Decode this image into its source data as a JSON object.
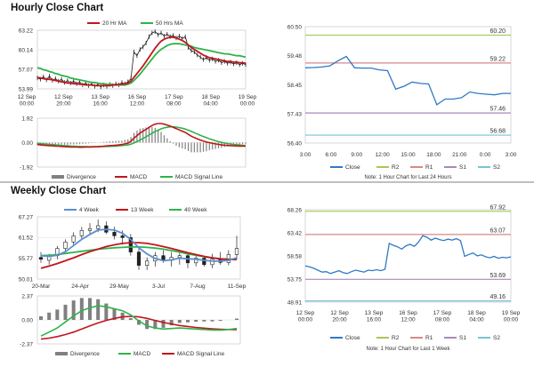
{
  "titles": {
    "hourly": "Hourly Close Chart",
    "weekly": "Weekly Close Chart"
  },
  "colors": {
    "price": "#1f1f1f",
    "ma_short": "#c0161c",
    "ma_long": "#2eb34a",
    "macd_red": "#c0161c",
    "signal_green": "#2eb34a",
    "close_blue": "#2f7ac6",
    "r2": "#a6c85a",
    "r1": "#d9878a",
    "s1": "#a78ab8",
    "s2": "#79c3d6",
    "divergence": "#808080",
    "four_week": "#5a8fd0"
  },
  "chart_data": [
    {
      "id": "hourly_price",
      "type": "line",
      "legend": [
        "20 Hr MA",
        "50 Hrs MA"
      ],
      "x_ticks": [
        "12 Sep\n00:00",
        "12 Sep\n20:00",
        "13 Sep\n16:00",
        "16 Sep\n12:00",
        "17 Sep\n08:00",
        "18 Sep\n04:00",
        "19 Sep\n00:00"
      ],
      "y_ticks": [
        "63.22",
        "60.14",
        "57.07",
        "53.99"
      ],
      "ylim": [
        53.99,
        63.22
      ],
      "price": [
        55.7,
        55.5,
        55.9,
        55.4,
        56.0,
        55.3,
        55.6,
        55.2,
        55.5,
        55.0,
        55.3,
        54.9,
        55.2,
        54.8,
        55.1,
        54.6,
        54.9,
        54.5,
        54.8,
        54.4,
        54.7,
        54.3,
        54.6,
        54.4,
        54.7,
        54.5,
        54.8,
        54.6,
        55.0,
        54.8,
        55.1,
        55.6,
        59.8,
        59.2,
        60.2,
        60.6,
        61.2,
        62.2,
        62.8,
        63.0,
        62.5,
        62.8,
        62.3,
        62.6,
        62.2,
        62.4,
        62.0,
        62.3,
        61.9,
        62.2,
        60.5,
        60.0,
        59.8,
        59.3,
        59.0,
        58.6,
        58.9,
        58.5,
        58.7,
        58.3,
        58.5,
        58.1,
        58.3,
        58.0,
        58.2,
        57.9,
        58.1,
        57.8,
        58.0,
        57.8
      ],
      "ma20": [
        55.8,
        55.7,
        55.6,
        55.5,
        55.5,
        55.4,
        55.3,
        55.2,
        55.1,
        55.0,
        54.9,
        54.9,
        54.8,
        54.8,
        54.7,
        54.7,
        54.6,
        54.6,
        54.6,
        54.5,
        54.5,
        54.5,
        54.5,
        54.5,
        54.5,
        54.6,
        54.6,
        54.7,
        54.7,
        54.8,
        54.9,
        55.2,
        55.8,
        56.4,
        57.0,
        57.6,
        58.3,
        59.0,
        59.7,
        60.4,
        61.0,
        61.5,
        61.8,
        62.0,
        62.1,
        62.1,
        62.0,
        61.8,
        61.6,
        61.3,
        60.9,
        60.5,
        60.2,
        59.9,
        59.6,
        59.3,
        59.1,
        58.9,
        58.8,
        58.7,
        58.6,
        58.5,
        58.4,
        58.3,
        58.3,
        58.2,
        58.2,
        58.1,
        58.1,
        58.0
      ],
      "ma50": [
        57.3,
        57.2,
        57.0,
        56.9,
        56.7,
        56.6,
        56.4,
        56.3,
        56.1,
        56.0,
        55.9,
        55.7,
        55.6,
        55.5,
        55.4,
        55.3,
        55.2,
        55.1,
        55.0,
        55.0,
        54.9,
        54.8,
        54.8,
        54.7,
        54.7,
        54.7,
        54.6,
        54.6,
        54.6,
        54.6,
        54.7,
        54.9,
        55.3,
        55.8,
        56.3,
        56.9,
        57.5,
        58.1,
        58.7,
        59.3,
        59.8,
        60.2,
        60.5,
        60.8,
        61.0,
        61.1,
        61.1,
        61.1,
        61.0,
        60.9,
        60.8,
        60.7,
        60.5,
        60.4,
        60.3,
        60.2,
        60.1,
        60.0,
        59.9,
        59.8,
        59.7,
        59.6,
        59.5,
        59.5,
        59.4,
        59.3,
        59.2,
        59.2,
        59.1,
        59.0
      ]
    },
    {
      "id": "hourly_macd",
      "type": "bar",
      "legend": [
        "Divergence",
        "MACD",
        "MACD Signal Line"
      ],
      "y_ticks": [
        "1.92",
        "0.00",
        "-1.92"
      ],
      "ylim": [
        -1.92,
        1.92
      ],
      "macd": [
        -0.15,
        -0.18,
        -0.2,
        -0.22,
        -0.24,
        -0.25,
        -0.27,
        -0.28,
        -0.3,
        -0.32,
        -0.33,
        -0.34,
        -0.35,
        -0.35,
        -0.36,
        -0.36,
        -0.35,
        -0.35,
        -0.34,
        -0.33,
        -0.32,
        -0.3,
        -0.28,
        -0.26,
        -0.24,
        -0.22,
        -0.2,
        -0.18,
        -0.15,
        -0.1,
        -0.05,
        0.1,
        0.35,
        0.55,
        0.75,
        0.9,
        1.05,
        1.2,
        1.35,
        1.45,
        1.5,
        1.5,
        1.45,
        1.38,
        1.3,
        1.2,
        1.1,
        1.0,
        0.9,
        0.8,
        0.65,
        0.5,
        0.4,
        0.3,
        0.2,
        0.12,
        0.05,
        0.0,
        -0.05,
        -0.1,
        -0.14,
        -0.18,
        -0.2,
        -0.22,
        -0.24,
        -0.25,
        -0.26,
        -0.27,
        -0.27,
        -0.28
      ],
      "signal": [
        -0.05,
        -0.08,
        -0.1,
        -0.12,
        -0.14,
        -0.16,
        -0.18,
        -0.2,
        -0.22,
        -0.24,
        -0.25,
        -0.27,
        -0.28,
        -0.29,
        -0.3,
        -0.31,
        -0.31,
        -0.32,
        -0.32,
        -0.32,
        -0.32,
        -0.31,
        -0.31,
        -0.3,
        -0.29,
        -0.28,
        -0.27,
        -0.25,
        -0.23,
        -0.21,
        -0.18,
        -0.12,
        -0.03,
        0.08,
        0.2,
        0.33,
        0.46,
        0.6,
        0.74,
        0.87,
        0.98,
        1.08,
        1.16,
        1.21,
        1.24,
        1.24,
        1.22,
        1.18,
        1.13,
        1.06,
        0.98,
        0.88,
        0.78,
        0.68,
        0.58,
        0.48,
        0.39,
        0.3,
        0.22,
        0.15,
        0.08,
        0.02,
        -0.03,
        -0.07,
        -0.11,
        -0.14,
        -0.17,
        -0.19,
        -0.21,
        -0.23
      ]
    },
    {
      "id": "hourly_close",
      "type": "line",
      "legend": [
        "Close",
        "R2",
        "R1",
        "S1",
        "S2"
      ],
      "note": "Note: 1 Hour Chart for Last 24 Hours",
      "x_ticks": [
        "3:00",
        "6:00",
        "9:00",
        "12:00",
        "15:00",
        "18:00",
        "21:00",
        "0:00",
        "3:00"
      ],
      "y_ticks": [
        "60.50",
        "59.48",
        "58.45",
        "57.43",
        "56.40"
      ],
      "ylim": [
        56.4,
        60.5
      ],
      "levels": {
        "R2": 60.2,
        "R1": 59.22,
        "S1": 57.46,
        "S2": 56.68
      },
      "level_labels": {
        "R2": "60.20",
        "R1": "59.22",
        "S1": "57.46",
        "S2": "56.68"
      },
      "values": [
        59.05,
        59.06,
        59.08,
        59.12,
        59.3,
        59.45,
        59.05,
        59.04,
        59.04,
        58.98,
        58.95,
        58.3,
        58.4,
        58.55,
        58.5,
        58.48,
        57.75,
        57.95,
        57.95,
        58.0,
        58.2,
        58.15,
        58.12,
        58.1,
        58.15,
        58.15
      ]
    },
    {
      "id": "weekly_price",
      "type": "line",
      "legend": [
        "4 Week",
        "13 Week",
        "40 Week"
      ],
      "x_ticks": [
        "20-Mar",
        "24-Apr",
        "29-May",
        "3-Jul",
        "7-Aug",
        "11-Sep"
      ],
      "y_ticks": [
        "67.27",
        "61.52",
        "55.77",
        "50.01"
      ],
      "ylim": [
        50.01,
        67.27
      ],
      "candles": [
        {
          "o": 56.0,
          "h": 57.5,
          "l": 54.5,
          "c": 55.5
        },
        {
          "o": 55.2,
          "h": 57.0,
          "l": 54.0,
          "c": 56.3
        },
        {
          "o": 56.5,
          "h": 59.2,
          "l": 55.5,
          "c": 58.5
        },
        {
          "o": 58.5,
          "h": 61.0,
          "l": 57.5,
          "c": 60.3
        },
        {
          "o": 60.3,
          "h": 63.0,
          "l": 59.5,
          "c": 62.0
        },
        {
          "o": 62.0,
          "h": 64.5,
          "l": 61.0,
          "c": 63.5
        },
        {
          "o": 63.5,
          "h": 65.5,
          "l": 62.5,
          "c": 64.0
        },
        {
          "o": 64.0,
          "h": 66.5,
          "l": 63.0,
          "c": 64.8
        },
        {
          "o": 64.8,
          "h": 66.0,
          "l": 62.5,
          "c": 63.0
        },
        {
          "o": 63.0,
          "h": 64.5,
          "l": 61.0,
          "c": 62.0
        },
        {
          "o": 62.0,
          "h": 63.5,
          "l": 59.5,
          "c": 61.5
        },
        {
          "o": 61.5,
          "h": 62.5,
          "l": 56.5,
          "c": 57.5
        },
        {
          "o": 57.5,
          "h": 58.5,
          "l": 52.5,
          "c": 53.8
        },
        {
          "o": 53.8,
          "h": 56.0,
          "l": 52.5,
          "c": 55.0
        },
        {
          "o": 55.0,
          "h": 57.5,
          "l": 53.5,
          "c": 56.5
        },
        {
          "o": 56.5,
          "h": 58.0,
          "l": 54.5,
          "c": 55.2
        },
        {
          "o": 55.2,
          "h": 57.5,
          "l": 53.5,
          "c": 56.0
        },
        {
          "o": 56.0,
          "h": 58.0,
          "l": 54.0,
          "c": 56.5
        },
        {
          "o": 56.5,
          "h": 57.0,
          "l": 53.0,
          "c": 54.5
        },
        {
          "o": 54.5,
          "h": 56.5,
          "l": 53.5,
          "c": 55.8
        },
        {
          "o": 55.8,
          "h": 56.5,
          "l": 53.5,
          "c": 54.0
        },
        {
          "o": 54.0,
          "h": 57.0,
          "l": 53.0,
          "c": 55.5
        },
        {
          "o": 55.5,
          "h": 57.5,
          "l": 54.0,
          "c": 54.6
        },
        {
          "o": 54.6,
          "h": 58.0,
          "l": 53.8,
          "c": 56.8
        },
        {
          "o": 56.8,
          "h": 62.0,
          "l": 55.5,
          "c": 58.5
        }
      ],
      "ma4": [
        56.5,
        56.3,
        56.6,
        57.6,
        59.3,
        61.0,
        62.4,
        63.6,
        63.8,
        63.6,
        62.7,
        61.0,
        58.7,
        57.0,
        55.7,
        55.1,
        55.3,
        55.8,
        55.6,
        55.5,
        55.2,
        55.0,
        55.0,
        55.2,
        55.9
      ],
      "ma13": [
        53.0,
        53.6,
        54.3,
        55.1,
        55.9,
        56.8,
        57.6,
        58.3,
        59.0,
        59.5,
        59.9,
        60.1,
        60.1,
        59.9,
        59.5,
        59.0,
        58.5,
        57.9,
        57.3,
        56.8,
        56.3,
        55.9,
        55.6,
        55.4,
        55.4
      ],
      "ma40": [
        56.5,
        56.6,
        56.8,
        57.1,
        57.4,
        57.7,
        58.0,
        58.3,
        58.5,
        58.7,
        58.8,
        58.9,
        58.9,
        58.8,
        58.6,
        58.3,
        57.9,
        57.5,
        57.0,
        56.6,
        56.2,
        55.9,
        55.6,
        55.5,
        55.4
      ]
    },
    {
      "id": "weekly_macd",
      "type": "bar",
      "legend": [
        "Divergence",
        "MACD",
        "MACD Signal Line"
      ],
      "y_ticks": [
        "2.37",
        "0.00",
        "-2.37"
      ],
      "ylim": [
        -2.37,
        2.37
      ],
      "macd": [
        -1.6,
        -1.2,
        -0.8,
        -0.2,
        0.4,
        0.9,
        1.2,
        1.4,
        1.3,
        1.1,
        0.9,
        0.5,
        -0.1,
        -0.6,
        -0.8,
        -0.9,
        -0.85,
        -0.8,
        -0.85,
        -0.9,
        -0.95,
        -1.0,
        -1.0,
        -0.95,
        -0.85
      ],
      "signal": [
        -1.9,
        -1.8,
        -1.65,
        -1.45,
        -1.2,
        -0.9,
        -0.6,
        -0.3,
        -0.05,
        0.15,
        0.3,
        0.35,
        0.3,
        0.15,
        -0.05,
        -0.25,
        -0.4,
        -0.55,
        -0.65,
        -0.75,
        -0.82,
        -0.88,
        -0.92,
        -0.95,
        -0.96
      ]
    },
    {
      "id": "weekly_close",
      "type": "line",
      "legend": [
        "Close",
        "R2",
        "R1",
        "S1",
        "S2"
      ],
      "note": "Note: 1 Hour Chart for Last 1 Week",
      "x_ticks": [
        "12 Sep\n00:00",
        "12 Sep\n20:00",
        "13 Sep\n16:00",
        "16 Sep\n12:00",
        "17 Sep\n08:00",
        "18 Sep\n04:00",
        "19 Sep\n00:00"
      ],
      "y_ticks": [
        "68.26",
        "63.42",
        "58.58",
        "53.75",
        "48.91"
      ],
      "ylim": [
        48.91,
        68.26
      ],
      "levels": {
        "R2": 67.92,
        "R1": 63.07,
        "S1": 53.69,
        "S2": 49.16
      },
      "level_labels": {
        "R2": "67.92",
        "R1": "63.07",
        "S1": "53.69",
        "S2": "49.16"
      },
      "values": [
        56.5,
        56.3,
        56.0,
        55.6,
        55.2,
        55.3,
        54.9,
        55.2,
        55.5,
        55.1,
        54.9,
        55.3,
        55.6,
        55.4,
        55.2,
        55.6,
        55.5,
        55.7,
        55.5,
        55.8,
        61.2,
        60.8,
        60.5,
        60.0,
        60.7,
        61.0,
        60.6,
        61.5,
        62.8,
        62.5,
        61.9,
        62.3,
        62.0,
        61.8,
        62.1,
        61.9,
        62.2,
        61.8,
        58.5,
        58.9,
        59.2,
        58.6,
        58.8,
        58.4,
        58.2,
        58.5,
        58.1,
        58.3,
        58.2,
        58.4
      ]
    }
  ]
}
